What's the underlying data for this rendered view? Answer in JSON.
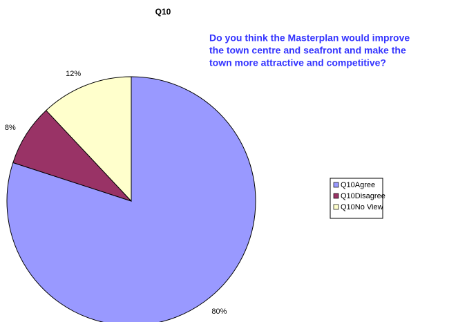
{
  "chart_data": {
    "type": "pie",
    "title": "Q10",
    "annotation": [
      "Do you think the Masterplan would improve",
      "the town centre and seafront and make the",
      "town more attractive and competitive?"
    ],
    "categories": [
      "Q10Agree",
      "Q10Disagree",
      "Q10No View"
    ],
    "values": [
      80,
      8,
      12
    ],
    "value_labels": [
      "80%",
      "8%",
      "12%"
    ],
    "colors": [
      "#9999ff",
      "#993366",
      "#ffffcc"
    ],
    "legend": "right"
  }
}
